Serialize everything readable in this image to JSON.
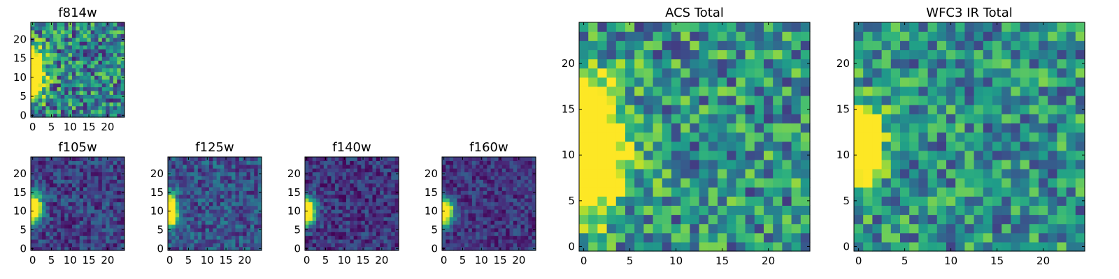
{
  "chart_data": [
    {
      "type": "heatmap",
      "title": "f814w",
      "grid_size": 25,
      "x_ticks": [
        0,
        5,
        10,
        15,
        20
      ],
      "y_ticks": [
        0,
        5,
        10,
        15,
        20
      ],
      "xlim": [
        -0.5,
        24.5
      ],
      "ylim": [
        -0.5,
        24.5
      ],
      "source": {
        "x": 0,
        "y": 11,
        "sx": 2.2,
        "sy": 4.0
      },
      "background_level": 0.45,
      "noise": 0.45,
      "seed": 11
    },
    {
      "type": "heatmap",
      "title": "f105w",
      "grid_size": 25,
      "x_ticks": [
        0,
        5,
        10,
        15,
        20
      ],
      "y_ticks": [
        0,
        5,
        10,
        15,
        20
      ],
      "xlim": [
        -0.5,
        24.5
      ],
      "ylim": [
        -0.5,
        24.5
      ],
      "source": {
        "x": 0,
        "y": 11,
        "sx": 1.6,
        "sy": 2.6
      },
      "background_level": 0.2,
      "noise": 0.22,
      "seed": 21
    },
    {
      "type": "heatmap",
      "title": "f125w",
      "grid_size": 25,
      "x_ticks": [
        0,
        5,
        10,
        15,
        20
      ],
      "y_ticks": [
        0,
        5,
        10,
        15,
        20
      ],
      "xlim": [
        -0.5,
        24.5
      ],
      "ylim": [
        -0.5,
        24.5
      ],
      "source": {
        "x": 0,
        "y": 10,
        "sx": 1.3,
        "sy": 2.8
      },
      "background_level": 0.26,
      "noise": 0.24,
      "seed": 31
    },
    {
      "type": "heatmap",
      "title": "f140w",
      "grid_size": 25,
      "x_ticks": [
        0,
        5,
        10,
        15,
        20
      ],
      "y_ticks": [
        0,
        5,
        10,
        15,
        20
      ],
      "xlim": [
        -0.5,
        24.5
      ],
      "ylim": [
        -0.5,
        24.5
      ],
      "source": {
        "x": 0,
        "y": 10,
        "sx": 1.6,
        "sy": 2.4
      },
      "background_level": 0.16,
      "noise": 0.2,
      "seed": 41
    },
    {
      "type": "heatmap",
      "title": "f160w",
      "grid_size": 25,
      "x_ticks": [
        0,
        5,
        10,
        15,
        20
      ],
      "y_ticks": [
        0,
        5,
        10,
        15,
        20
      ],
      "xlim": [
        -0.5,
        24.5
      ],
      "ylim": [
        -0.5,
        24.5
      ],
      "source": {
        "x": 0,
        "y": 10,
        "sx": 1.7,
        "sy": 2.3
      },
      "background_level": 0.16,
      "noise": 0.18,
      "seed": 51
    },
    {
      "type": "heatmap",
      "title": "ACS Total",
      "grid_size": 25,
      "x_ticks": [
        0,
        5,
        10,
        15,
        20
      ],
      "y_ticks": [
        0,
        5,
        10,
        15,
        20
      ],
      "xlim": [
        -0.5,
        24.5
      ],
      "ylim": [
        -0.5,
        24.5
      ],
      "source": {
        "x": 0,
        "y": 11,
        "sx": 3.0,
        "sy": 4.5
      },
      "background_level": 0.5,
      "noise": 0.42,
      "seed": 61
    },
    {
      "type": "heatmap",
      "title": "WFC3 IR Total",
      "grid_size": 25,
      "x_ticks": [
        0,
        5,
        10,
        15,
        20
      ],
      "y_ticks": [
        0,
        5,
        10,
        15,
        20
      ],
      "xlim": [
        -0.5,
        24.5
      ],
      "ylim": [
        -0.5,
        24.5
      ],
      "source": {
        "x": 0,
        "y": 11,
        "sx": 1.6,
        "sy": 2.8
      },
      "background_level": 0.5,
      "noise": 0.38,
      "seed": 71
    }
  ],
  "colormap": [
    "#440154",
    "#482878",
    "#3e4989",
    "#31688e",
    "#26828e",
    "#1f9e89",
    "#35b779",
    "#6ece58",
    "#b5de2b",
    "#fde725"
  ]
}
